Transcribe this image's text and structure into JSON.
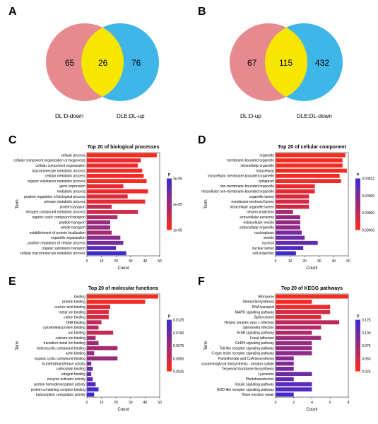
{
  "panels": {
    "A": "A",
    "B": "B",
    "C": "C",
    "D": "D",
    "E": "E",
    "F": "F"
  },
  "venn": {
    "A": {
      "left_n": "65",
      "mid_n": "26",
      "right_n": "76",
      "left_lab": "DL:D-down",
      "right_lab": "DLE:DL-up",
      "left_color": "#e78a8f",
      "right_color": "#3fb6e8",
      "mid_color": "#f7e600"
    },
    "B": {
      "left_n": "67",
      "mid_n": "115",
      "right_n": "432",
      "left_lab": "DL:D-up",
      "right_lab": "DLE:DL-down",
      "left_color": "#e78a8f",
      "right_color": "#3fb6e8",
      "mid_color": "#f7e600"
    }
  },
  "charts": {
    "C": {
      "title": "Top 20 of biological processes",
      "xlabel": "Count",
      "ylabel": "Term",
      "xmax": 50,
      "xticks": [
        0,
        10,
        20,
        30,
        40,
        50
      ],
      "p_label": "P",
      "p_ticks": [
        "3e-05",
        "2e-05",
        "1e-05"
      ],
      "grad_low": "#ff2a1a",
      "grad_high": "#3b2bd6",
      "bars": [
        {
          "t": "cellular process",
          "v": 48,
          "p": 0.02
        },
        {
          "t": "cellular component organization or biogenesis",
          "v": 37,
          "p": 0.1
        },
        {
          "t": "cellular component organization",
          "v": 35,
          "p": 0.08
        },
        {
          "t": "macromolecule metabolic process",
          "v": 38,
          "p": 0.05
        },
        {
          "t": "cellular metabolic process",
          "v": 39,
          "p": 0.06
        },
        {
          "t": "organic substance metabolic process",
          "v": 41,
          "p": 0.03
        },
        {
          "t": "gene expression",
          "v": 25,
          "p": 0.14
        },
        {
          "t": "metabolic process",
          "v": 42,
          "p": 0.07
        },
        {
          "t": "positive regulation of biological process",
          "v": 28,
          "p": 0.2
        },
        {
          "t": "primary metabolic process",
          "v": 40,
          "p": 0.12
        },
        {
          "t": "protein transport",
          "v": 17,
          "p": 0.3
        },
        {
          "t": "nitrogen compound metabolic process",
          "v": 35,
          "p": 0.25
        },
        {
          "t": "organic cyclic compound transport",
          "v": 21,
          "p": 0.4
        },
        {
          "t": "peptide transport",
          "v": 16,
          "p": 0.5
        },
        {
          "t": "amide transport",
          "v": 16,
          "p": 0.55
        },
        {
          "t": "establishment of protein localization",
          "v": 17,
          "p": 0.45
        },
        {
          "t": "organelle organization",
          "v": 23,
          "p": 0.6
        },
        {
          "t": "positive regulation of cellular process",
          "v": 25,
          "p": 0.7
        },
        {
          "t": "organic substance transport",
          "v": 20,
          "p": 0.85
        },
        {
          "t": "cellular macromolecule metabolic process",
          "v": 27,
          "p": 0.98
        }
      ]
    },
    "D": {
      "title": "Top 20 of cellular component",
      "xlabel": "Count",
      "ylabel": "Term",
      "xmax": 50,
      "xticks": [
        0,
        10,
        20,
        30,
        40,
        50
      ],
      "p_label": "P",
      "p_ticks": [
        "0.00012",
        "0.00009",
        "0.00006",
        "0.00003"
      ],
      "grad_low": "#ff2a1a",
      "grad_high": "#3b2bd6",
      "bars": [
        {
          "t": "organelle",
          "v": 48,
          "p": 0.02
        },
        {
          "t": "membrane-bounded organelle",
          "v": 46,
          "p": 0.04
        },
        {
          "t": "intracellular organelle",
          "v": 46,
          "p": 0.05
        },
        {
          "t": "intracellular",
          "v": 49,
          "p": 0.03
        },
        {
          "t": "intracellular membrane-bounded organelle",
          "v": 44,
          "p": 0.07
        },
        {
          "t": "cytoplasm",
          "v": 45,
          "p": 0.06
        },
        {
          "t": "non-membrane-bounded organelle",
          "v": 27,
          "p": 0.12
        },
        {
          "t": "intracellular non-membrane-bounded organelle",
          "v": 27,
          "p": 0.13
        },
        {
          "t": "organelle lumen",
          "v": 23,
          "p": 0.2
        },
        {
          "t": "membrane-enclosed lumen",
          "v": 23,
          "p": 0.22
        },
        {
          "t": "intracellular organelle lumen",
          "v": 23,
          "p": 0.23
        },
        {
          "t": "neuron projection",
          "v": 12,
          "p": 0.45
        },
        {
          "t": "extracellular exosome",
          "v": 17,
          "p": 0.55
        },
        {
          "t": "extracellular vesicle",
          "v": 17,
          "p": 0.56
        },
        {
          "t": "extracellular organelle",
          "v": 17,
          "p": 0.57
        },
        {
          "t": "nucleoplasm",
          "v": 18,
          "p": 0.7
        },
        {
          "t": "vesicle",
          "v": 20,
          "p": 0.75
        },
        {
          "t": "nucleus",
          "v": 29,
          "p": 0.8
        },
        {
          "t": "nuclear lumen",
          "v": 19,
          "p": 0.9
        },
        {
          "t": "cell projection",
          "v": 14,
          "p": 0.97
        }
      ]
    },
    "E": {
      "title": "Top 20 of molecular functions",
      "xlabel": "Count",
      "ylabel": "Term",
      "xmax": 50,
      "xticks": [
        0,
        10,
        20,
        30,
        40,
        50
      ],
      "p_label": "P",
      "p_ticks": [
        "0.0125",
        "0.0100",
        "0.0075",
        "0.0050",
        "0.0025"
      ],
      "grad_low": "#ff2a1a",
      "grad_high": "#3b2bd6",
      "bars": [
        {
          "t": "binding",
          "v": 49,
          "p": 0.02
        },
        {
          "t": "protein binding",
          "v": 40,
          "p": 0.06
        },
        {
          "t": "nucleic acid binding",
          "v": 16,
          "p": 0.15
        },
        {
          "t": "metal ion binding",
          "v": 15,
          "p": 0.2
        },
        {
          "t": "cation binding",
          "v": 15,
          "p": 0.22
        },
        {
          "t": "DNA binding",
          "v": 10,
          "p": 0.35
        },
        {
          "t": "cytoskeletal protein binding",
          "v": 8,
          "p": 0.38
        },
        {
          "t": "ion binding",
          "v": 18,
          "p": 0.3
        },
        {
          "t": "calcium ion binding",
          "v": 6,
          "p": 0.48
        },
        {
          "t": "transition metal ion binding",
          "v": 8,
          "p": 0.5
        },
        {
          "t": "heterocyclic compound binding",
          "v": 21,
          "p": 0.45
        },
        {
          "t": "actin binding",
          "v": 5,
          "p": 0.55
        },
        {
          "t": "organic cyclic compound binding",
          "v": 21,
          "p": 0.52
        },
        {
          "t": "N-methyltransferase activity",
          "v": 3,
          "p": 0.7
        },
        {
          "t": "calmodulin binding",
          "v": 4,
          "p": 0.75
        },
        {
          "t": "integrin binding",
          "v": 3,
          "p": 0.8
        },
        {
          "t": "enzyme activator activity",
          "v": 4,
          "p": 0.83
        },
        {
          "t": "protein homodimerization activity",
          "v": 6,
          "p": 0.88
        },
        {
          "t": "protein-containing complex binding",
          "v": 8,
          "p": 0.93
        },
        {
          "t": "transcription coregulator activity",
          "v": 5,
          "p": 0.98
        }
      ]
    },
    "F": {
      "title": "Top 20 of KEGG pathways",
      "xlabel": "Count",
      "ylabel": "Term",
      "xmax": 8,
      "xticks": [
        0,
        2,
        4,
        6,
        8
      ],
      "p_label": "P",
      "p_ticks": [
        "0.125",
        "0.100",
        "0.075",
        "0.050",
        "0.025"
      ],
      "grad_low": "#ff2a1a",
      "grad_high": "#3b2bd6",
      "bars": [
        {
          "t": "Ribosome",
          "v": 8,
          "p": 0.02
        },
        {
          "t": "Steroid biosynthesis",
          "v": 4,
          "p": 0.05
        },
        {
          "t": "RNA transport",
          "v": 6,
          "p": 0.1
        },
        {
          "t": "MAPK signaling pathway",
          "v": 6,
          "p": 0.22
        },
        {
          "t": "Spliceosome",
          "v": 5,
          "p": 0.2
        },
        {
          "t": "Herpes simplex virus 1 infection",
          "v": 7,
          "p": 0.35
        },
        {
          "t": "Salmonella infection",
          "v": 5,
          "p": 0.4
        },
        {
          "t": "ErbB signaling pathway",
          "v": 4,
          "p": 0.42
        },
        {
          "t": "Focal adhesion",
          "v": 5,
          "p": 0.5
        },
        {
          "t": "GnRH signaling pathway",
          "v": 4,
          "p": 0.52
        },
        {
          "t": "Toll-like receptor signaling pathway",
          "v": 4,
          "p": 0.55
        },
        {
          "t": "C-type lectin receptor signaling pathway",
          "v": 4,
          "p": 0.58
        },
        {
          "t": "Pantothenate and CoA biosynthesis",
          "v": 2,
          "p": 0.62
        },
        {
          "t": "Glycosaminoglycan biosynthesis - keratan sulfate",
          "v": 2,
          "p": 0.65
        },
        {
          "t": "Terpenoid backbone biosynthesis",
          "v": 2,
          "p": 0.7
        },
        {
          "t": "Lysosome",
          "v": 4,
          "p": 0.75
        },
        {
          "t": "Phototransduction",
          "v": 2,
          "p": 0.8
        },
        {
          "t": "Insulin signaling pathway",
          "v": 4,
          "p": 0.85
        },
        {
          "t": "NOD-like receptor signaling pathway",
          "v": 4,
          "p": 0.9
        },
        {
          "t": "Base excision repair",
          "v": 2,
          "p": 0.97
        }
      ]
    }
  }
}
